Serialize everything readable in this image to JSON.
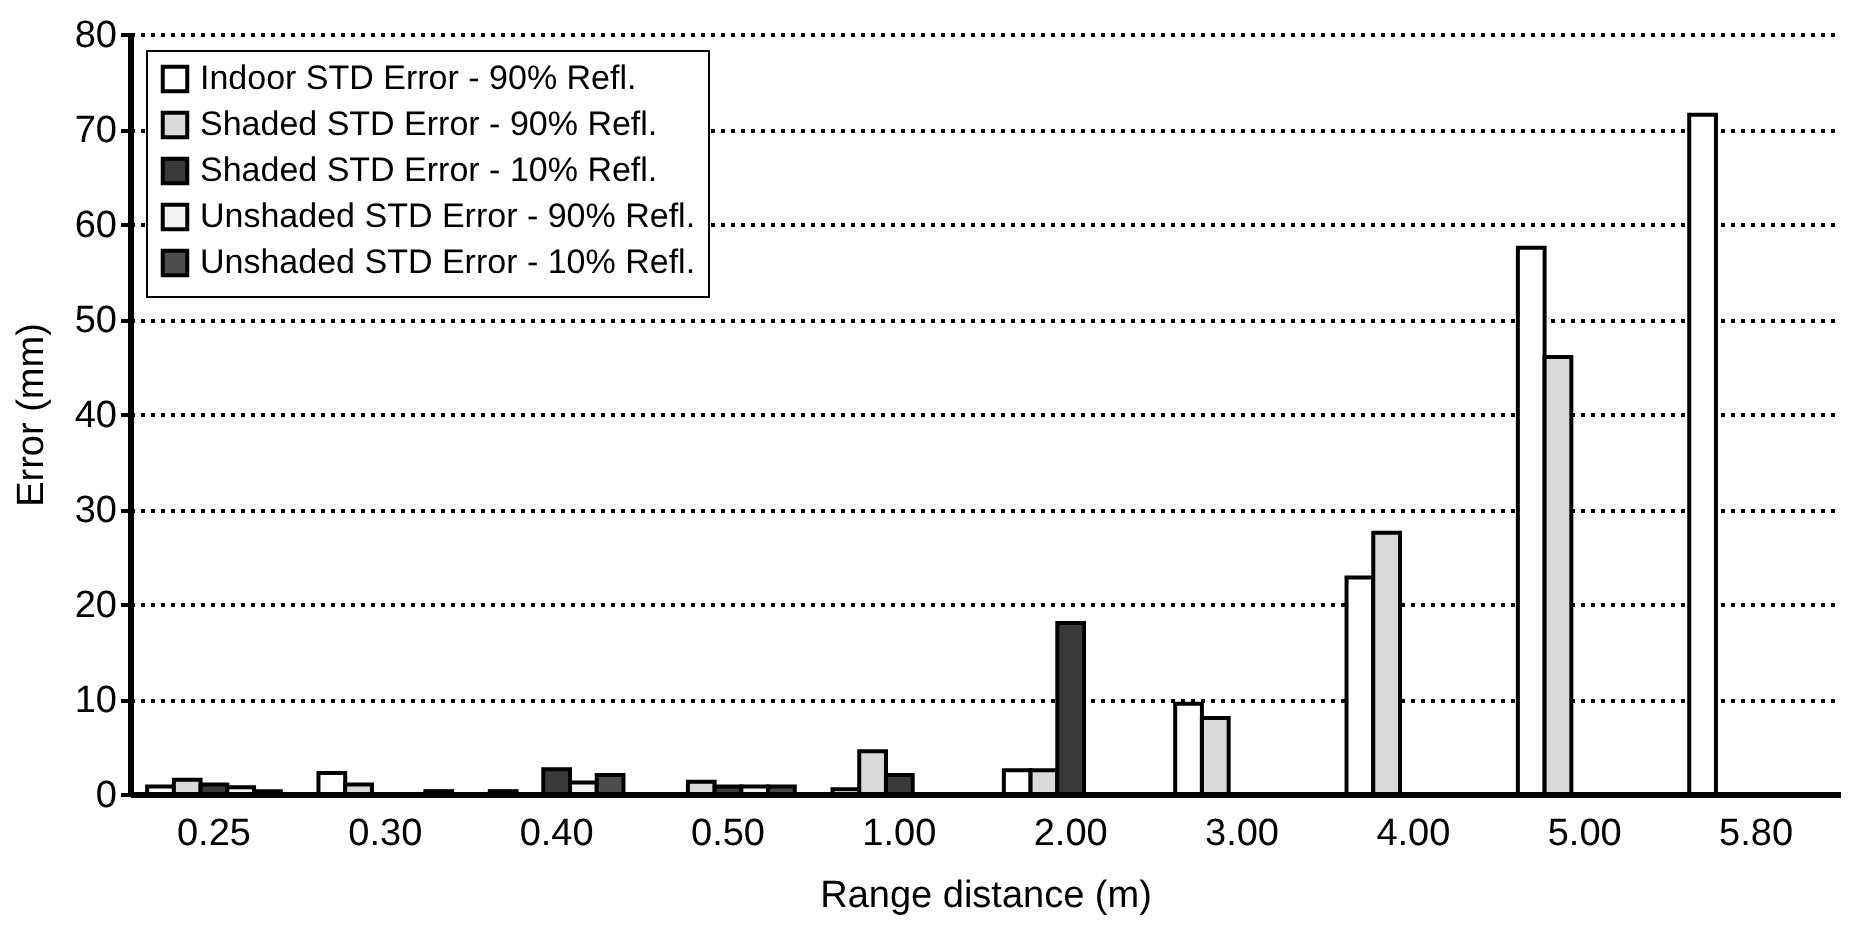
{
  "chart_data": {
    "type": "bar",
    "xlabel": "Range distance (m)",
    "ylabel": "Error (mm)",
    "categories": [
      "0.25",
      "0.30",
      "0.40",
      "0.50",
      "1.00",
      "2.00",
      "3.00",
      "4.00",
      "5.00",
      "5.80"
    ],
    "series": [
      {
        "name": "Indoor STD Error - 90% Refl.",
        "color": "#ffffff",
        "values": [
          0.8,
          2.2,
          0.3,
          null,
          0.5,
          2.5,
          9.5,
          22.8,
          57.5,
          71.5
        ]
      },
      {
        "name": "Shaded STD Error - 90% Refl.",
        "color": "#d9d9d9",
        "values": [
          1.5,
          1.0,
          null,
          1.3,
          4.5,
          2.5,
          8,
          27.5,
          46,
          null
        ]
      },
      {
        "name": "Shaded STD Error - 10% Refl.",
        "color": "#3a3a3a",
        "values": [
          1.0,
          null,
          2.6,
          0.8,
          2.0,
          18,
          null,
          null,
          null,
          null
        ]
      },
      {
        "name": "Unshaded STD Error - 90% Refl.",
        "color": "#f2f2f2",
        "values": [
          0.7,
          null,
          1.2,
          0.8,
          null,
          null,
          null,
          null,
          null,
          null
        ]
      },
      {
        "name": "Unshaded STD Error - 10% Refl.",
        "color": "#4d4d4d",
        "values": [
          0.3,
          0.3,
          2.0,
          0.8,
          null,
          null,
          null,
          null,
          null,
          null
        ]
      }
    ],
    "ylim": [
      0,
      80
    ],
    "yticks": [
      0,
      10,
      20,
      30,
      40,
      50,
      60,
      70,
      80
    ],
    "grid": "y",
    "legend": "top left"
  }
}
